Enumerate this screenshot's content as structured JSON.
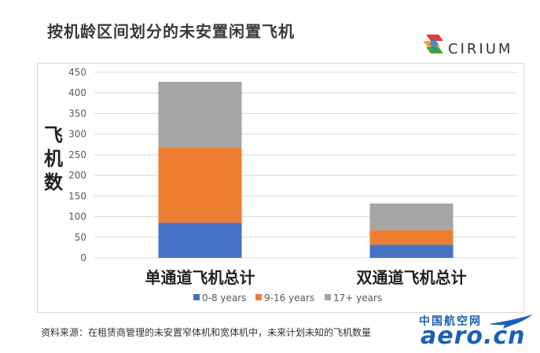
{
  "title": "按机龄区间划分的未安置闲置飞机",
  "brand": "CIRIUM",
  "footnote": "资料来源：在租赁商管理的未安置窄体机和宽体机中，未来计划未知的飞机数量",
  "watermark": {
    "cn": "中国航空网",
    "en": "aero.cn"
  },
  "chart_data": {
    "type": "bar",
    "stacked": true,
    "categories": [
      "单通道飞机总计",
      "双通道飞机总计"
    ],
    "series": [
      {
        "name": "0-8 years",
        "color": "#4472c4",
        "values": [
          85,
          32
        ]
      },
      {
        "name": "9-16 years",
        "color": "#ed7d31",
        "values": [
          182,
          35
        ]
      },
      {
        "name": "17+ years",
        "color": "#a5a5a5",
        "values": [
          160,
          65
        ]
      }
    ],
    "ylabel": "飞机数",
    "ylim": [
      0,
      450
    ],
    "yticks": [
      0,
      50,
      100,
      150,
      200,
      250,
      300,
      350,
      400,
      450
    ],
    "grid": true,
    "legend_position": "bottom"
  }
}
